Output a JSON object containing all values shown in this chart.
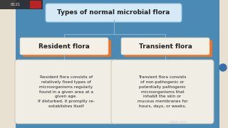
{
  "bg_color": "#4a8ab5",
  "title_text": "Types of normal microbial flora",
  "title_box_color": "#d6eaf5",
  "title_box_edge": "#9ac5dd",
  "left_label": "Resident flora",
  "right_label": "Transient flora",
  "label_box_color": "#f5f0e5",
  "label_box_edge": "#d0c8b0",
  "label_accent_color": "#e8732a",
  "left_body": "Resident flora consists of\nrelatively fixed types of\nmicroorganisms regularly\nfound in a given area at a\ngiven age.\nIf disturbed, it promptly re-\nestablishes itself",
  "right_body": "Transient flora consists\nof non-pathogenic or\npotentially pathogenic\nmicroorganisms that\ninhabit the skin or\nmucous membranes for\nhours, days, or weeks.",
  "body_box_color": "#f0ede5",
  "body_box_edge": "#c8c0a8",
  "connector_color": "#8ab0c8",
  "sidebar_left_color": "#e8e0d0",
  "watermark": "cideo.com",
  "text_color": "#222222",
  "watermark_color": "#c8c8c8"
}
